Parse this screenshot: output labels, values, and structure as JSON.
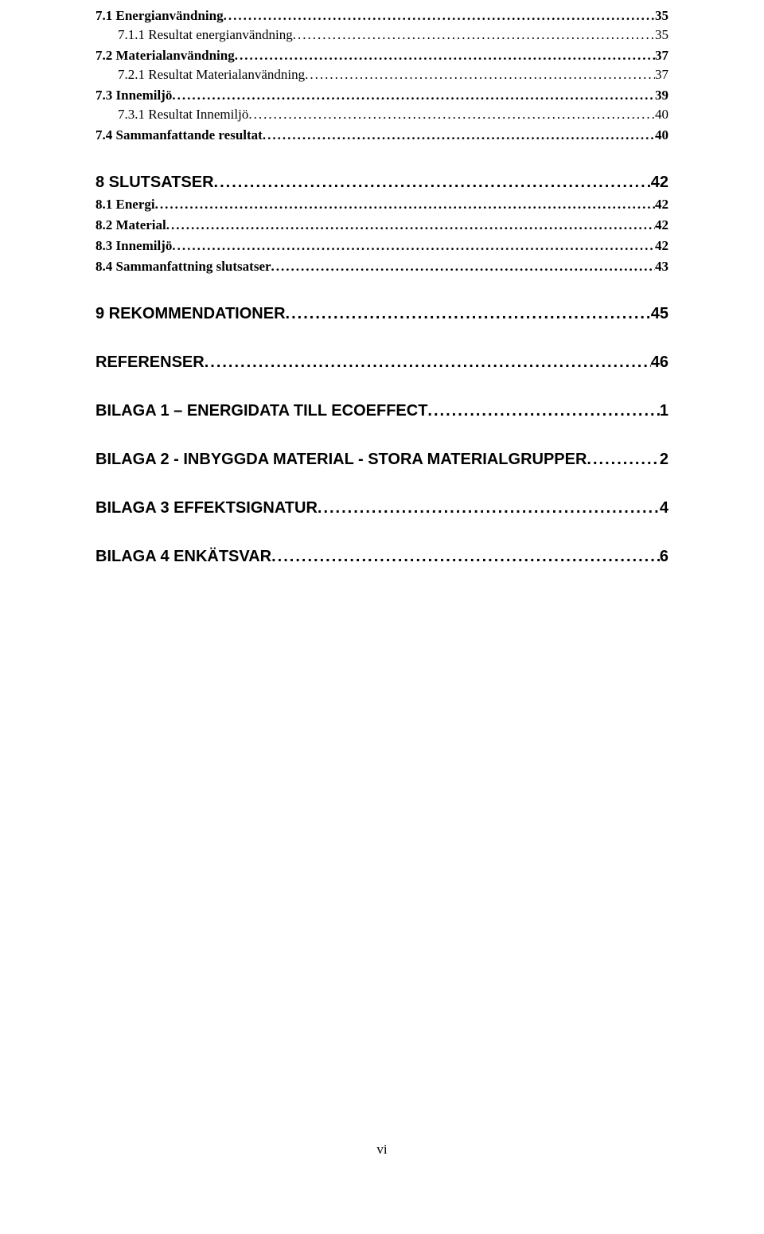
{
  "toc": [
    {
      "level": "sub",
      "first": true,
      "label": "7.1 Energianvändning",
      "page": "35"
    },
    {
      "level": "subsub",
      "label": "7.1.1 Resultat energianvändning",
      "page": "35"
    },
    {
      "level": "sub",
      "label": "7.2 Materialanvändning",
      "page": "37"
    },
    {
      "level": "subsub",
      "label": "7.2.1 Resultat Materialanvändning",
      "page": "37"
    },
    {
      "level": "sub",
      "label": "7.3 Innemiljö",
      "page": "39"
    },
    {
      "level": "subsub",
      "label": "7.3.1 Resultat Innemiljö",
      "page": "40"
    },
    {
      "level": "sub",
      "label": "7.4 Sammanfattande resultat",
      "page": "40"
    },
    {
      "level": "chapter",
      "label": "8 SLUTSATSER",
      "page": "42"
    },
    {
      "level": "sub",
      "label": "8.1 Energi",
      "page": "42"
    },
    {
      "level": "sub",
      "label": "8.2 Material",
      "page": "42"
    },
    {
      "level": "sub",
      "label": "8.3 Innemiljö",
      "page": "42"
    },
    {
      "level": "sub",
      "label": "8.4 Sammanfattning slutsatser",
      "page": "43"
    },
    {
      "level": "chapter",
      "label": "9 REKOMMENDATIONER",
      "page": "45"
    },
    {
      "level": "chapter",
      "label": "REFERENSER",
      "page": "46"
    },
    {
      "level": "chapter",
      "label": "BILAGA 1 – ENERGIDATA TILL ECOEFFECT",
      "page": "1"
    },
    {
      "level": "chapter",
      "label": "BILAGA 2 - INBYGGDA MATERIAL - STORA MATERIALGRUPPER",
      "page": "2"
    },
    {
      "level": "chapter",
      "label": "BILAGA 3 EFFEKTSIGNATUR",
      "page": "4"
    },
    {
      "level": "chapter",
      "label": "BILAGA 4 ENKÄTSVAR",
      "page": "6"
    }
  ],
  "footer": "vi"
}
